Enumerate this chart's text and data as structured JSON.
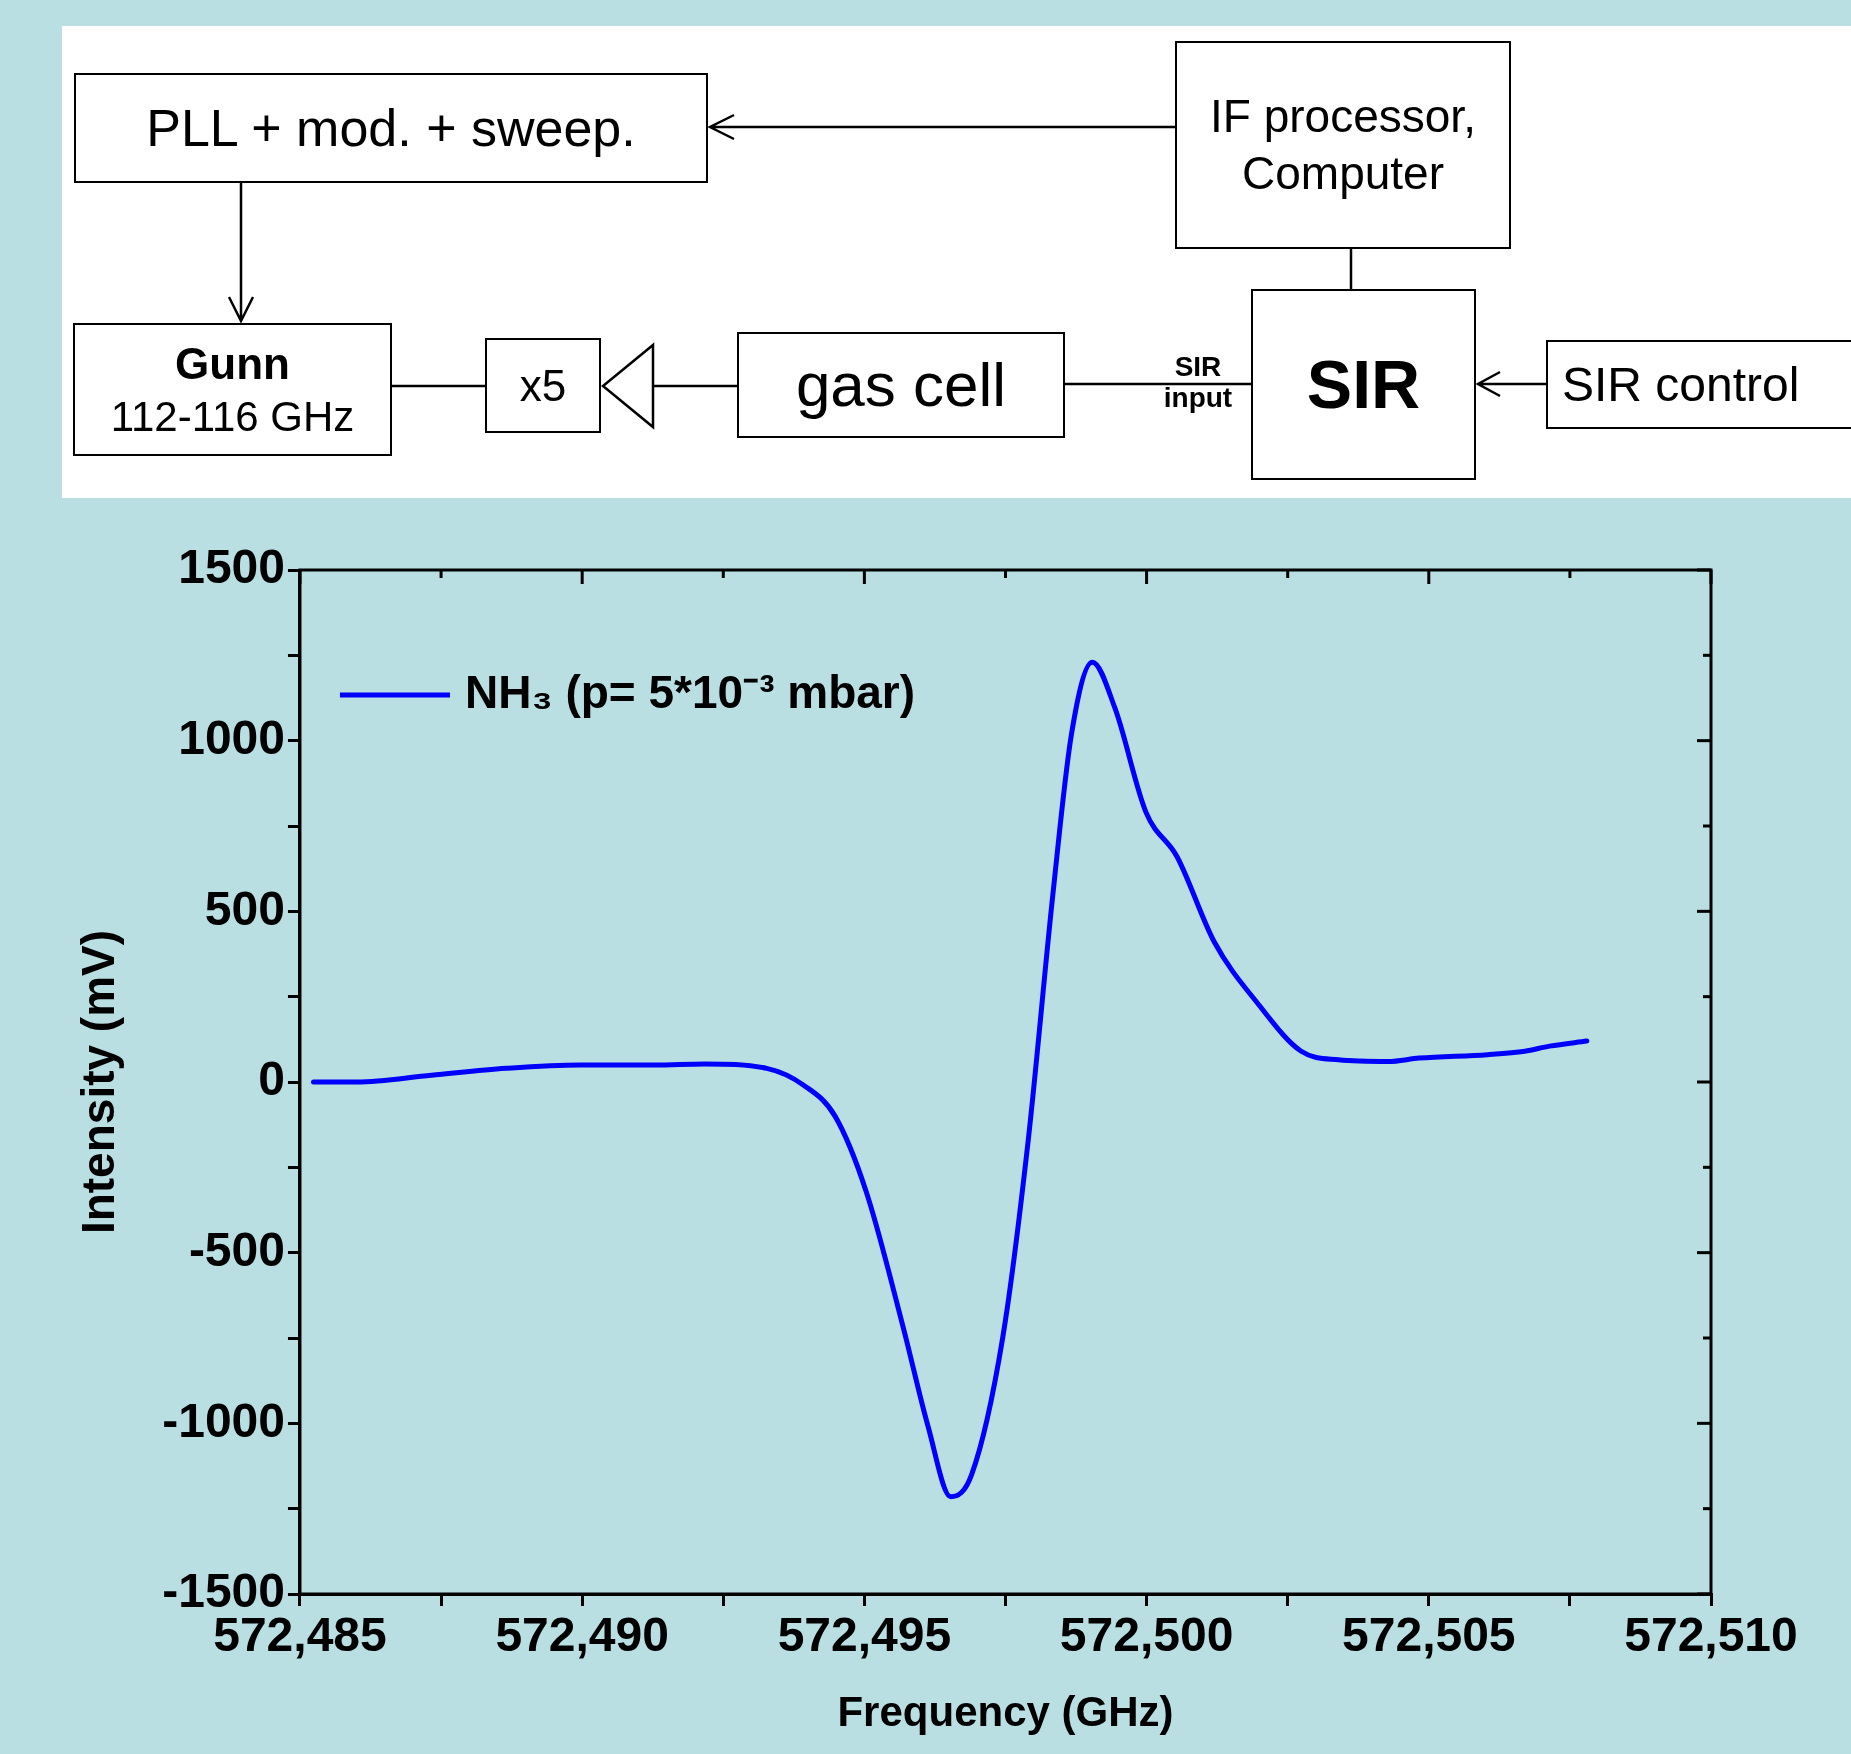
{
  "chart_data": {
    "type": "line",
    "xlabel": "Frequency (GHz)",
    "ylabel": "Intensity (mV)",
    "annotations": [
      "PLL + mod. + sweep.",
      "IF processor,",
      "Computer",
      "Gunn",
      "112-116 GHz",
      "x5",
      "gas cell",
      "SIR",
      "input",
      "SIR",
      "SIR control"
    ],
    "xlim": [
      572485,
      572510
    ],
    "xticks": [
      {
        "value": 572485,
        "label": "572,485"
      },
      {
        "value": 572487.5,
        "label": null
      },
      {
        "value": 572490,
        "label": "572,490"
      },
      {
        "value": 572492.5,
        "label": null
      },
      {
        "value": 572495,
        "label": "572,495"
      },
      {
        "value": 572497.5,
        "label": null
      },
      {
        "value": 572500,
        "label": "572,500"
      },
      {
        "value": 572502.5,
        "label": null
      },
      {
        "value": 572505,
        "label": "572,505"
      },
      {
        "value": 572507.5,
        "label": null
      },
      {
        "value": 572510,
        "label": "572,510"
      }
    ],
    "ylim": [
      -1500,
      1500
    ],
    "yticks": [
      -1500,
      {
        "value": -1250,
        "label": null
      },
      -1000,
      {
        "value": -750,
        "label": null
      },
      -500,
      {
        "value": -250,
        "label": null
      },
      0,
      {
        "value": 250,
        "label": null
      },
      500,
      {
        "value": 750,
        "label": null
      },
      1000,
      {
        "value": 1250,
        "label": null
      },
      1500
    ],
    "legend": "top left",
    "marker": "none",
    "line_style": "solid",
    "series": [
      {
        "name": "NH₃ (p= 5*10⁻³ mbar)",
        "color": "#0000ff",
        "x": [
          572485.24,
          572486.01,
          572487.33,
          572488.65,
          572489.97,
          572491.29,
          572492.17,
          572493.27,
          572493.93,
          572494.48,
          572495.03,
          572495.69,
          572496.13,
          572496.53,
          572496.9,
          572497.45,
          572497.9,
          572498.34,
          572498.67,
          572499.04,
          572499.44,
          572499.99,
          572500.54,
          572501.2,
          572501.97,
          572502.74,
          572503.4,
          572504.28,
          572504.83,
          572506.04,
          572506.7,
          572507.14,
          572507.8
        ],
        "values": [
          0,
          0,
          20,
          40,
          50,
          50,
          53,
          40,
          -10,
          -100,
          -320,
          -720,
          -1010,
          -1215,
          -1150,
          -750,
          -175,
          550,
          1020,
          1230,
          1095,
          790,
          660,
          410,
          230,
          90,
          65,
          60,
          70,
          80,
          90,
          105,
          120
        ]
      }
    ]
  }
}
